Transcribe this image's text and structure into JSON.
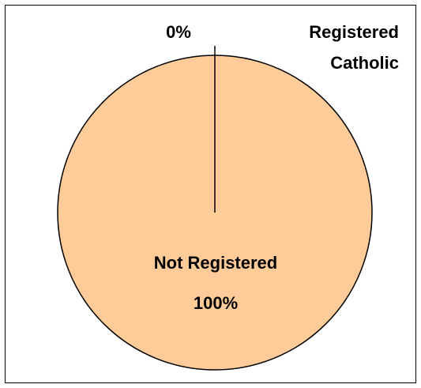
{
  "chart_data": {
    "type": "pie",
    "slices": [
      {
        "label": "Registered Catholic",
        "label_lines": [
          "Registered",
          "Catholic"
        ],
        "value": 0,
        "value_label": "0%",
        "color": "#000000"
      },
      {
        "label": "Not Registered",
        "label_lines": [
          "Not Registered"
        ],
        "value": 100,
        "value_label": "100%",
        "color": "#FFCC99"
      }
    ]
  },
  "colors": {
    "pie_fill": "#FFCC99",
    "pie_stroke": "#000000",
    "border": "#000000"
  }
}
